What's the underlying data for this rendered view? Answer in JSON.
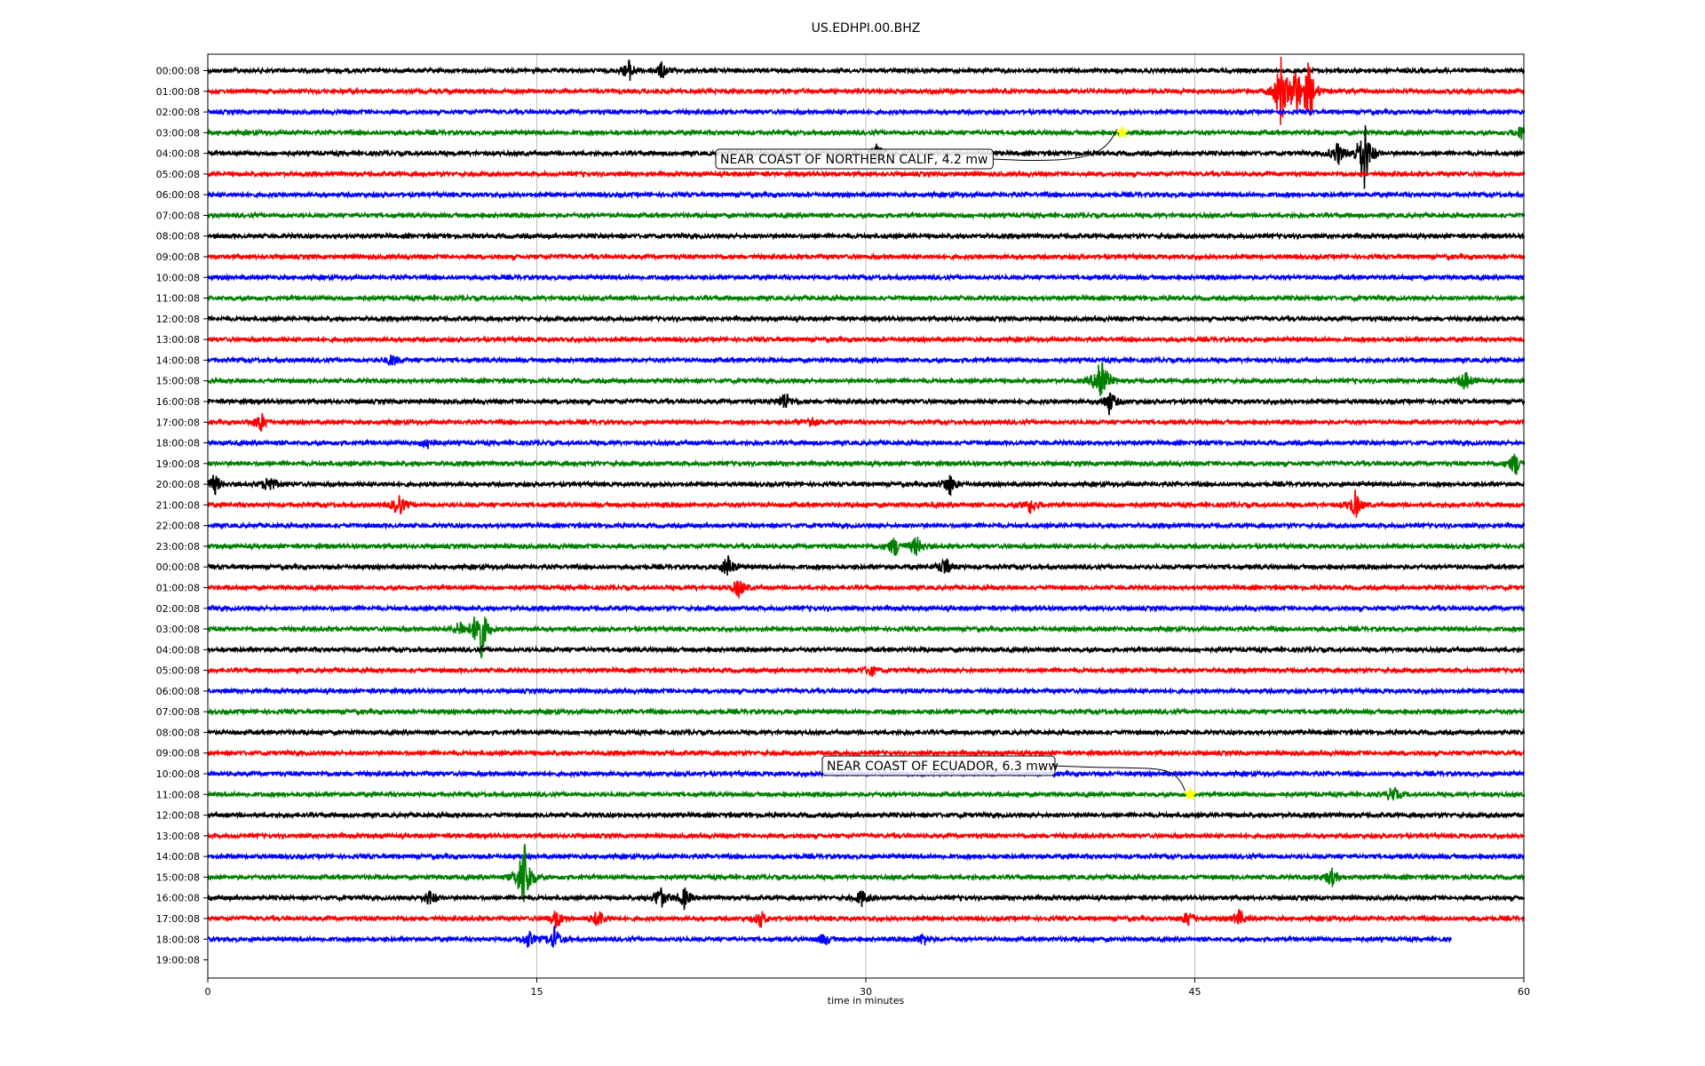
{
  "chart_data": {
    "type": "line",
    "title": "US.EDHPI.00.BHZ",
    "xlabel": "time in minutes",
    "ylabel": "",
    "xlim": [
      0,
      60
    ],
    "x_ticks": [
      "0",
      "15",
      "30",
      "45",
      "60"
    ],
    "grid": "vertical",
    "trace_colors": [
      "#000000",
      "#ff0000",
      "#0000ff",
      "#008000"
    ],
    "row_labels": [
      "00:00:08",
      "01:00:08",
      "02:00:08",
      "03:00:08",
      "04:00:08",
      "05:00:08",
      "06:00:08",
      "07:00:08",
      "08:00:08",
      "09:00:08",
      "10:00:08",
      "11:00:08",
      "12:00:08",
      "13:00:08",
      "14:00:08",
      "15:00:08",
      "16:00:08",
      "17:00:08",
      "18:00:08",
      "19:00:08",
      "20:00:08",
      "21:00:08",
      "22:00:08",
      "23:00:08",
      "00:00:08",
      "01:00:08",
      "02:00:08",
      "03:00:08",
      "04:00:08",
      "05:00:08",
      "06:00:08",
      "07:00:08",
      "08:00:08",
      "09:00:08",
      "10:00:08",
      "11:00:08",
      "12:00:08",
      "13:00:08",
      "14:00:08",
      "15:00:08",
      "16:00:08",
      "17:00:08",
      "18:00:08",
      "19:00:08"
    ],
    "last_trace_end_minute": 56.7,
    "events": [
      {
        "row": 3,
        "minute": 41.7,
        "label": "NEAR COAST OF NORTHERN CALIF, 4.2 mw"
      },
      {
        "row": 35,
        "minute": 44.8,
        "label": "NEAR COAST OF ECUADOR, 6.3 mww"
      }
    ],
    "marker_color": "#ffff00",
    "spikes": [
      {
        "row": 0,
        "minute": 19.2,
        "amp": 0.5
      },
      {
        "row": 0,
        "minute": 20.7,
        "amp": 0.4
      },
      {
        "row": 1,
        "minute": 48.9,
        "amp": 1.8
      },
      {
        "row": 1,
        "minute": 49.6,
        "amp": 1.2
      },
      {
        "row": 1,
        "minute": 50.2,
        "amp": 1.5
      },
      {
        "row": 3,
        "minute": 59.9,
        "amp": 0.4
      },
      {
        "row": 4,
        "minute": 52.7,
        "amp": 2.0
      },
      {
        "row": 4,
        "minute": 51.5,
        "amp": 0.6
      },
      {
        "row": 4,
        "minute": 30.5,
        "amp": 0.5
      },
      {
        "row": 14,
        "minute": 8.4,
        "amp": 0.3
      },
      {
        "row": 15,
        "minute": 40.7,
        "amp": 1.6
      },
      {
        "row": 15,
        "minute": 57.3,
        "amp": 0.5
      },
      {
        "row": 16,
        "minute": 26.3,
        "amp": 0.5
      },
      {
        "row": 16,
        "minute": 41.1,
        "amp": 0.6
      },
      {
        "row": 17,
        "minute": 2.4,
        "amp": 0.5
      },
      {
        "row": 17,
        "minute": 27.5,
        "amp": 0.3
      },
      {
        "row": 18,
        "minute": 10.0,
        "amp": 0.3
      },
      {
        "row": 19,
        "minute": 59.6,
        "amp": 0.6
      },
      {
        "row": 20,
        "minute": 0.3,
        "amp": 0.5
      },
      {
        "row": 20,
        "minute": 2.8,
        "amp": 0.5
      },
      {
        "row": 20,
        "minute": 33.8,
        "amp": 0.6
      },
      {
        "row": 21,
        "minute": 8.7,
        "amp": 0.6
      },
      {
        "row": 21,
        "minute": 37.5,
        "amp": 0.4
      },
      {
        "row": 21,
        "minute": 52.3,
        "amp": 0.7
      },
      {
        "row": 23,
        "minute": 31.3,
        "amp": 0.5
      },
      {
        "row": 23,
        "minute": 32.3,
        "amp": 0.5
      },
      {
        "row": 24,
        "minute": 23.7,
        "amp": 0.6
      },
      {
        "row": 24,
        "minute": 33.6,
        "amp": 0.5
      },
      {
        "row": 25,
        "minute": 24.2,
        "amp": 0.5
      },
      {
        "row": 27,
        "minute": 12.4,
        "amp": 1.8
      },
      {
        "row": 27,
        "minute": 11.5,
        "amp": 0.4
      },
      {
        "row": 29,
        "minute": 30.2,
        "amp": 0.3
      },
      {
        "row": 35,
        "minute": 54.0,
        "amp": 0.4
      },
      {
        "row": 39,
        "minute": 14.4,
        "amp": 2.1
      },
      {
        "row": 39,
        "minute": 51.2,
        "amp": 0.5
      },
      {
        "row": 40,
        "minute": 10.1,
        "amp": 0.4
      },
      {
        "row": 40,
        "minute": 20.6,
        "amp": 0.6
      },
      {
        "row": 40,
        "minute": 21.7,
        "amp": 0.5
      },
      {
        "row": 40,
        "minute": 29.8,
        "amp": 0.4
      },
      {
        "row": 41,
        "minute": 15.9,
        "amp": 0.5
      },
      {
        "row": 41,
        "minute": 17.8,
        "amp": 0.5
      },
      {
        "row": 41,
        "minute": 25.2,
        "amp": 0.4
      },
      {
        "row": 41,
        "minute": 44.7,
        "amp": 0.4
      },
      {
        "row": 41,
        "minute": 47.0,
        "amp": 0.4
      },
      {
        "row": 42,
        "minute": 14.6,
        "amp": 0.4
      },
      {
        "row": 42,
        "minute": 15.8,
        "amp": 0.6
      },
      {
        "row": 42,
        "minute": 28.1,
        "amp": 0.3
      },
      {
        "row": 42,
        "minute": 32.6,
        "amp": 0.3
      }
    ]
  }
}
